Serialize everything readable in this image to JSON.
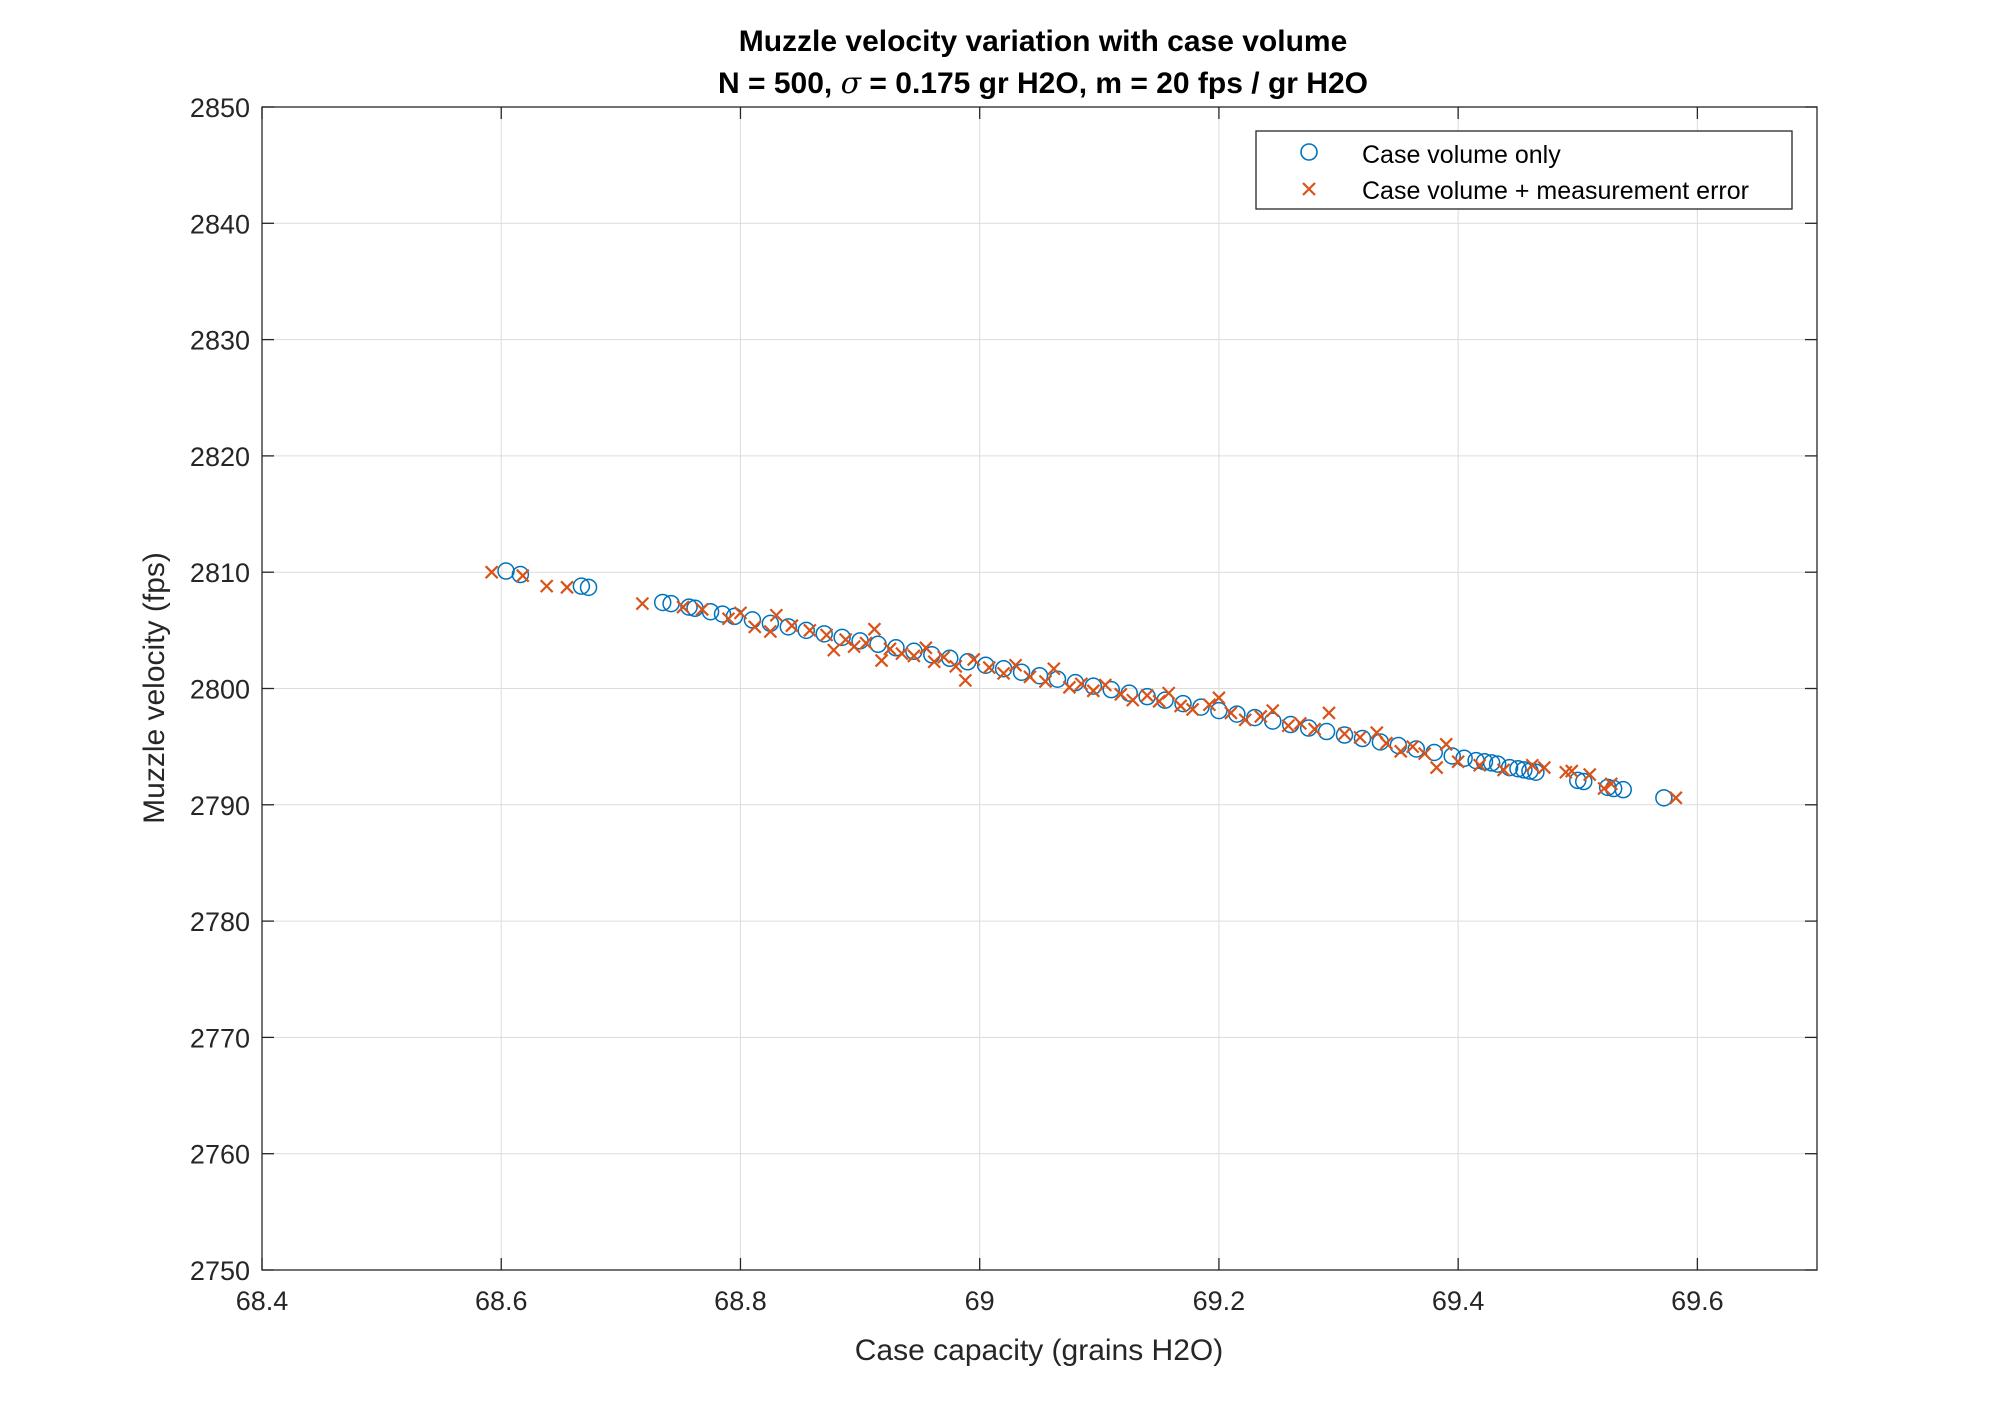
{
  "chart_data": {
    "type": "scatter",
    "title_line1": "Muzzle velocity variation with case volume",
    "title_line2_prefix": "N = 500, ",
    "title_line2_sigma": "σ",
    "title_line2_suffix": " = 0.175 gr H2O, m = 20 fps / gr H2O",
    "xlabel": "Case capacity (grains H2O)",
    "ylabel": "Muzzle velocity (fps)",
    "xlim": [
      68.4,
      69.7
    ],
    "ylim": [
      2750,
      2850
    ],
    "xticks": [
      68.4,
      68.6,
      68.8,
      69.0,
      69.2,
      69.4,
      69.6
    ],
    "xtick_labels": [
      "68.4",
      "68.6",
      "68.8",
      "69",
      "69.2",
      "69.4",
      "69.6"
    ],
    "yticks": [
      2750,
      2760,
      2770,
      2780,
      2790,
      2800,
      2810,
      2820,
      2830,
      2840,
      2850
    ],
    "ytick_labels": [
      "2750",
      "2760",
      "2770",
      "2780",
      "2790",
      "2800",
      "2810",
      "2820",
      "2830",
      "2840",
      "2850"
    ],
    "grid": true,
    "legend_position": "top-right",
    "series": [
      {
        "name": "Case volume only",
        "marker": "circle",
        "color": "#0072BD",
        "points": [
          [
            68.604,
            2810.1
          ],
          [
            68.616,
            2809.8
          ],
          [
            68.667,
            2808.8
          ],
          [
            68.673,
            2808.7
          ],
          [
            68.735,
            2807.4
          ],
          [
            68.742,
            2807.3
          ],
          [
            68.757,
            2807.0
          ],
          [
            68.762,
            2806.9
          ],
          [
            68.775,
            2806.6
          ],
          [
            68.785,
            2806.4
          ],
          [
            68.795,
            2806.2
          ],
          [
            68.81,
            2805.9
          ],
          [
            68.825,
            2805.6
          ],
          [
            68.84,
            2805.3
          ],
          [
            68.855,
            2805.0
          ],
          [
            68.87,
            2804.7
          ],
          [
            68.885,
            2804.4
          ],
          [
            68.9,
            2804.1
          ],
          [
            68.915,
            2803.8
          ],
          [
            68.93,
            2803.5
          ],
          [
            68.945,
            2803.2
          ],
          [
            68.96,
            2802.9
          ],
          [
            68.975,
            2802.6
          ],
          [
            68.99,
            2802.3
          ],
          [
            69.005,
            2802.0
          ],
          [
            69.02,
            2801.7
          ],
          [
            69.035,
            2801.4
          ],
          [
            69.05,
            2801.1
          ],
          [
            69.065,
            2800.8
          ],
          [
            69.08,
            2800.5
          ],
          [
            69.095,
            2800.2
          ],
          [
            69.11,
            2799.9
          ],
          [
            69.125,
            2799.6
          ],
          [
            69.14,
            2799.3
          ],
          [
            69.155,
            2799.0
          ],
          [
            69.17,
            2798.7
          ],
          [
            69.185,
            2798.4
          ],
          [
            69.2,
            2798.1
          ],
          [
            69.215,
            2797.8
          ],
          [
            69.23,
            2797.5
          ],
          [
            69.245,
            2797.2
          ],
          [
            69.26,
            2796.9
          ],
          [
            69.275,
            2796.6
          ],
          [
            69.29,
            2796.3
          ],
          [
            69.305,
            2796.0
          ],
          [
            69.32,
            2795.7
          ],
          [
            69.335,
            2795.4
          ],
          [
            69.35,
            2795.1
          ],
          [
            69.365,
            2794.8
          ],
          [
            69.38,
            2794.5
          ],
          [
            69.395,
            2794.2
          ],
          [
            69.405,
            2794.0
          ],
          [
            69.415,
            2793.8
          ],
          [
            69.422,
            2793.7
          ],
          [
            69.428,
            2793.6
          ],
          [
            69.433,
            2793.5
          ],
          [
            69.443,
            2793.2
          ],
          [
            69.45,
            2793.1
          ],
          [
            69.455,
            2793.0
          ],
          [
            69.46,
            2792.9
          ],
          [
            69.465,
            2792.8
          ],
          [
            69.5,
            2792.1
          ],
          [
            69.505,
            2792.0
          ],
          [
            69.525,
            2791.5
          ],
          [
            69.53,
            2791.4
          ],
          [
            69.538,
            2791.3
          ],
          [
            69.572,
            2790.6
          ]
        ]
      },
      {
        "name": "Case volume + measurement error",
        "marker": "x",
        "color": "#D95319",
        "points": [
          [
            68.592,
            2810.0
          ],
          [
            68.618,
            2809.7
          ],
          [
            68.638,
            2808.8
          ],
          [
            68.655,
            2808.7
          ],
          [
            68.718,
            2807.3
          ],
          [
            68.752,
            2807.0
          ],
          [
            68.768,
            2806.8
          ],
          [
            68.79,
            2806.0
          ],
          [
            68.8,
            2806.5
          ],
          [
            68.812,
            2805.3
          ],
          [
            68.825,
            2804.9
          ],
          [
            68.83,
            2806.3
          ],
          [
            68.843,
            2805.4
          ],
          [
            68.858,
            2805.0
          ],
          [
            68.872,
            2804.6
          ],
          [
            68.878,
            2803.3
          ],
          [
            68.888,
            2804.2
          ],
          [
            68.895,
            2803.6
          ],
          [
            68.905,
            2803.9
          ],
          [
            68.912,
            2805.1
          ],
          [
            68.918,
            2802.4
          ],
          [
            68.925,
            2803.4
          ],
          [
            68.935,
            2803.0
          ],
          [
            68.945,
            2802.8
          ],
          [
            68.955,
            2803.5
          ],
          [
            68.962,
            2802.3
          ],
          [
            68.97,
            2802.7
          ],
          [
            68.98,
            2801.9
          ],
          [
            68.988,
            2800.7
          ],
          [
            68.995,
            2802.5
          ],
          [
            69.008,
            2801.8
          ],
          [
            69.02,
            2801.3
          ],
          [
            69.03,
            2802.0
          ],
          [
            69.042,
            2801.0
          ],
          [
            69.055,
            2800.6
          ],
          [
            69.062,
            2801.7
          ],
          [
            69.075,
            2800.1
          ],
          [
            69.085,
            2800.4
          ],
          [
            69.095,
            2799.8
          ],
          [
            69.105,
            2800.3
          ],
          [
            69.118,
            2799.5
          ],
          [
            69.128,
            2799.0
          ],
          [
            69.14,
            2799.4
          ],
          [
            69.15,
            2798.9
          ],
          [
            69.158,
            2799.6
          ],
          [
            69.168,
            2798.5
          ],
          [
            69.178,
            2798.2
          ],
          [
            69.192,
            2798.6
          ],
          [
            69.2,
            2799.2
          ],
          [
            69.21,
            2797.9
          ],
          [
            69.222,
            2797.3
          ],
          [
            69.235,
            2797.6
          ],
          [
            69.245,
            2798.1
          ],
          [
            69.258,
            2796.8
          ],
          [
            69.268,
            2797.0
          ],
          [
            69.28,
            2796.5
          ],
          [
            69.292,
            2797.9
          ],
          [
            69.305,
            2796.1
          ],
          [
            69.318,
            2795.8
          ],
          [
            69.332,
            2796.2
          ],
          [
            69.34,
            2795.3
          ],
          [
            69.352,
            2794.6
          ],
          [
            69.362,
            2795.0
          ],
          [
            69.372,
            2794.4
          ],
          [
            69.382,
            2793.2
          ],
          [
            69.39,
            2795.2
          ],
          [
            69.4,
            2793.7
          ],
          [
            69.418,
            2793.4
          ],
          [
            69.438,
            2793.0
          ],
          [
            69.462,
            2793.4
          ],
          [
            69.472,
            2793.2
          ],
          [
            69.49,
            2792.8
          ],
          [
            69.495,
            2792.9
          ],
          [
            69.51,
            2792.6
          ],
          [
            69.522,
            2791.4
          ],
          [
            69.528,
            2791.8
          ],
          [
            69.582,
            2790.6
          ]
        ]
      }
    ]
  }
}
